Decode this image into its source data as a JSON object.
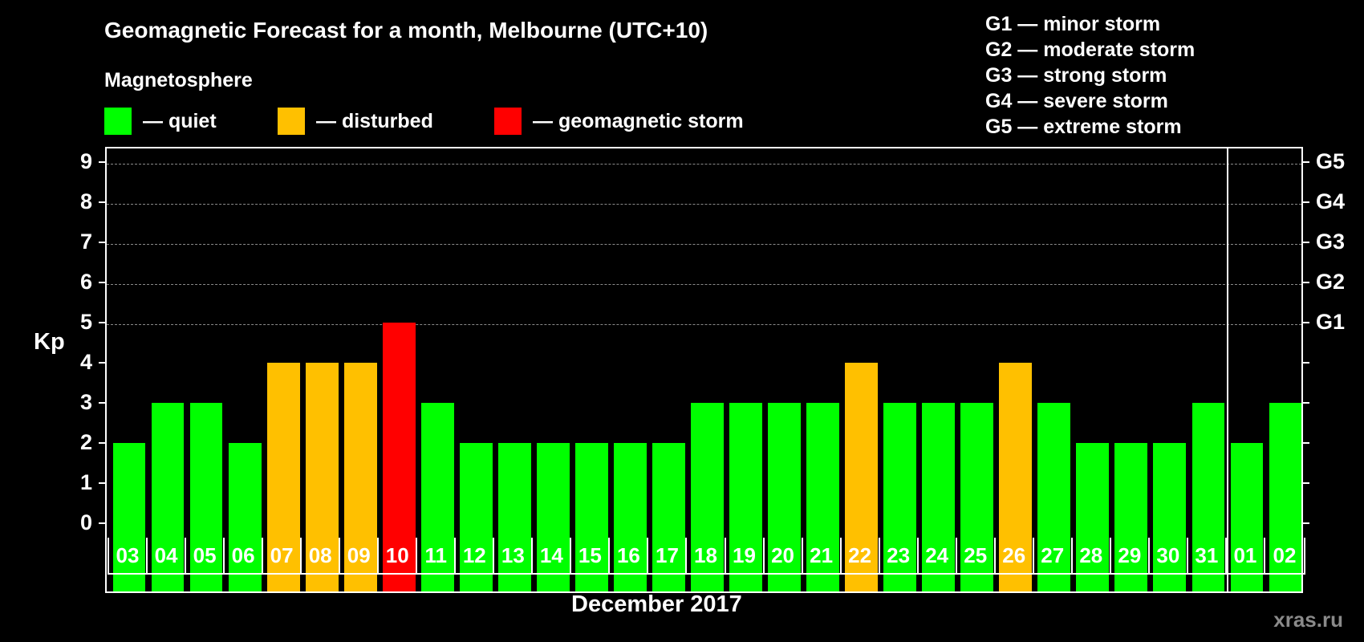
{
  "title": "Geomagnetic Forecast for a month, Melbourne (UTC+10)",
  "subtitle": "Magnetosphere",
  "legend": [
    {
      "label": "— quiet",
      "color": "#00ff00"
    },
    {
      "label": "— disturbed",
      "color": "#ffc000"
    },
    {
      "label": "— geomagnetic storm",
      "color": "#ff0000"
    }
  ],
  "g_legend": [
    "G1 — minor storm",
    "G2 — moderate storm",
    "G3 — strong storm",
    "G4 — severe storm",
    "G5 — extreme storm"
  ],
  "y_axis_label": "Kp",
  "x_axis_label": "December 2017",
  "watermark": "xras.ru",
  "chart_data": {
    "type": "bar",
    "title": "Geomagnetic Forecast for a month, Melbourne (UTC+10)",
    "xlabel": "December 2017",
    "ylabel": "Kp",
    "ylim": [
      0,
      9
    ],
    "yticks": [
      0,
      1,
      2,
      3,
      4,
      5,
      6,
      7,
      8,
      9
    ],
    "right_axis_labels": {
      "5": "G1",
      "6": "G2",
      "7": "G3",
      "8": "G4",
      "9": "G5"
    },
    "grid": "dashed horizontal at Kp 5-9",
    "categories": [
      "03",
      "04",
      "05",
      "06",
      "07",
      "08",
      "09",
      "10",
      "11",
      "12",
      "13",
      "14",
      "15",
      "16",
      "17",
      "18",
      "19",
      "20",
      "21",
      "22",
      "23",
      "24",
      "25",
      "26",
      "27",
      "28",
      "29",
      "30",
      "31",
      "01",
      "02"
    ],
    "values": [
      2,
      3,
      3,
      2,
      4,
      4,
      4,
      5,
      3,
      2,
      2,
      2,
      2,
      2,
      2,
      3,
      3,
      3,
      3,
      4,
      3,
      3,
      3,
      4,
      3,
      2,
      2,
      2,
      3,
      2,
      3
    ],
    "status": [
      "quiet",
      "quiet",
      "quiet",
      "quiet",
      "disturbed",
      "disturbed",
      "disturbed",
      "storm",
      "quiet",
      "quiet",
      "quiet",
      "quiet",
      "quiet",
      "quiet",
      "quiet",
      "quiet",
      "quiet",
      "quiet",
      "quiet",
      "disturbed",
      "quiet",
      "quiet",
      "quiet",
      "disturbed",
      "quiet",
      "quiet",
      "quiet",
      "quiet",
      "quiet",
      "quiet",
      "quiet"
    ],
    "colors": {
      "quiet": "#00ff00",
      "disturbed": "#ffc000",
      "storm": "#ff0000"
    },
    "month_separator_after": "31"
  }
}
